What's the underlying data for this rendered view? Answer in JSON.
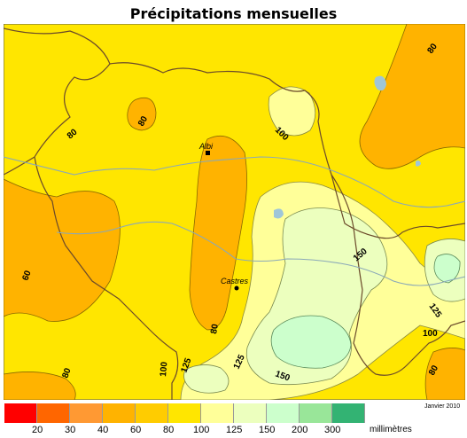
{
  "title": "Précipitations mensuelles",
  "credit": "Janvier 2010",
  "legend": {
    "unit": "millimètres",
    "ticks": [
      "20",
      "30",
      "40",
      "60",
      "80",
      "100",
      "125",
      "150",
      "200",
      "300"
    ],
    "colors": [
      "#ff0000",
      "#ff6600",
      "#ff9933",
      "#ffb300",
      "#ffcc00",
      "#ffe600",
      "#ffff99",
      "#ecffbe",
      "#ccffcc",
      "#99e699",
      "#33b373"
    ]
  },
  "map": {
    "cities": [
      {
        "name": "Albi"
      },
      {
        "name": "Castres"
      }
    ],
    "contour_labels": [
      "80",
      "80",
      "100",
      "80",
      "60",
      "80",
      "150",
      "125",
      "100",
      "80",
      "100",
      "125",
      "125",
      "150",
      "80"
    ]
  }
}
